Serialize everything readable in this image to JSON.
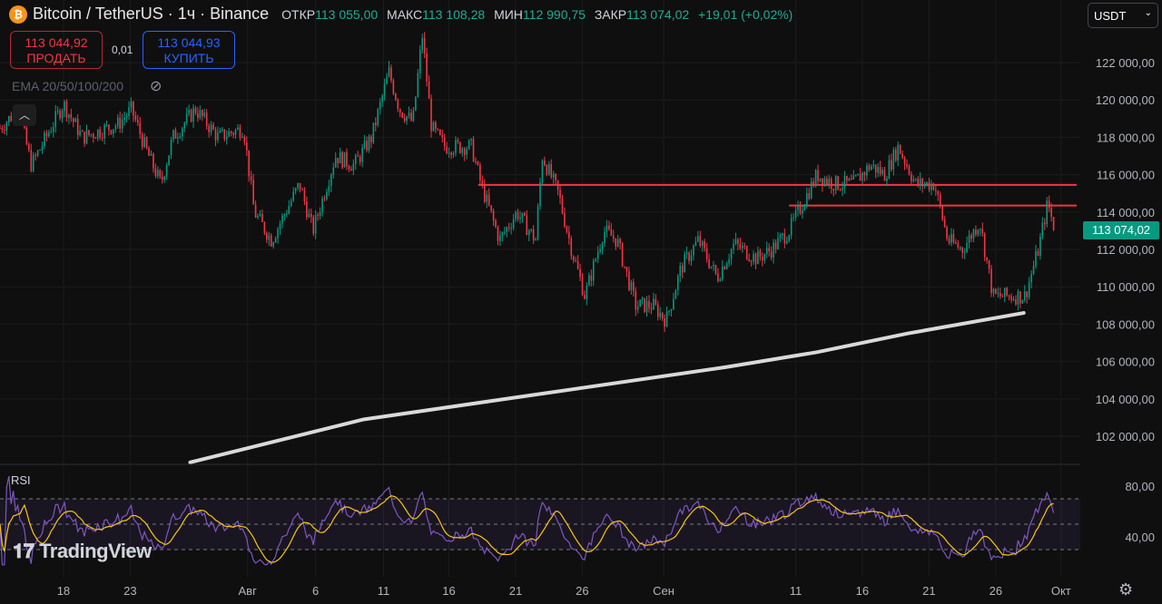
{
  "header": {
    "symbol_title": "Bitcoin / TetherUS · 1ч · Binance",
    "open_label": "ОТКР",
    "open": "113 055,00",
    "high_label": "МАКС",
    "high": "113 108,28",
    "low_label": "МИН",
    "low": "112 990,75",
    "close_label": "ЗАКР",
    "close": "113 074,02",
    "change": "+19,01 (+0,02%)"
  },
  "trade": {
    "sell_price": "113 044,92",
    "sell_label": "ПРОДАТЬ",
    "spread": "0,01",
    "buy_price": "113 044,93",
    "buy_label": "КУПИТЬ"
  },
  "indicator_label": "EMA 20/50/100/200",
  "currency": "USDT",
  "current_price": "113 074,02",
  "rsi_label": "RSI",
  "brand": "TradingView",
  "colors": {
    "up": "#089981",
    "down": "#f23645",
    "level": "#f23645",
    "ema": "#d9d9d9",
    "rsi": "#7e57c2",
    "rsi_ma": "#f5c518"
  },
  "chart_data": {
    "type": "candlestick",
    "title": "Bitcoin / TetherUS · 1ч · Binance",
    "ylim": [
      100500,
      124000
    ],
    "y_ticks": [
      102000,
      104000,
      106000,
      108000,
      110000,
      112000,
      114000,
      116000,
      118000,
      120000,
      122000
    ],
    "y_tick_labels": [
      "102 000,00",
      "104 000,00",
      "106 000,00",
      "108 000,00",
      "110 000,00",
      "112 000,00",
      "114 000,00",
      "116 000,00",
      "118 000,00",
      "120 000,00",
      "122 000,00"
    ],
    "x_unit": "days since Jul 18",
    "xlim": [
      -4.76,
      74.2
    ],
    "x_ticks": [
      {
        "t": 0,
        "label": "18"
      },
      {
        "t": 5,
        "label": "23"
      },
      {
        "t": 13.8,
        "label": "Авг"
      },
      {
        "t": 18.9,
        "label": "6"
      },
      {
        "t": 24,
        "label": "11"
      },
      {
        "t": 28.9,
        "label": "16"
      },
      {
        "t": 33.9,
        "label": "21"
      },
      {
        "t": 38.9,
        "label": "26"
      },
      {
        "t": 45,
        "label": "Сен"
      },
      {
        "t": 54.9,
        "label": "11"
      },
      {
        "t": 59.9,
        "label": "16"
      },
      {
        "t": 64.9,
        "label": "21"
      },
      {
        "t": 69.9,
        "label": "26"
      },
      {
        "t": 74.8,
        "label": "Окт"
      }
    ],
    "price_path": [
      [
        -4.76,
        118500
      ],
      [
        -3.4,
        119500
      ],
      [
        -2.4,
        116500
      ],
      [
        0,
        119800
      ],
      [
        1.4,
        118000
      ],
      [
        4.1,
        118700
      ],
      [
        5.1,
        119500
      ],
      [
        6.1,
        117500
      ],
      [
        7.3,
        115500
      ],
      [
        8.2,
        118000
      ],
      [
        9.9,
        119500
      ],
      [
        11.6,
        118000
      ],
      [
        13.5,
        118500
      ],
      [
        14.3,
        114000
      ],
      [
        15.6,
        112500
      ],
      [
        17.7,
        115500
      ],
      [
        18.7,
        113000
      ],
      [
        20.4,
        117000
      ],
      [
        21.8,
        116500
      ],
      [
        23.1,
        118000
      ],
      [
        24.4,
        121500
      ],
      [
        25.2,
        119500
      ],
      [
        26.2,
        118800
      ],
      [
        26.9,
        123500
      ],
      [
        27.6,
        118500
      ],
      [
        28.6,
        117500
      ],
      [
        30.6,
        117500
      ],
      [
        31.3,
        115500
      ],
      [
        32.7,
        112500
      ],
      [
        34,
        114000
      ],
      [
        35.4,
        112500
      ],
      [
        35.9,
        117000
      ],
      [
        37.1,
        115000
      ],
      [
        38.1,
        112000
      ],
      [
        39.1,
        109500
      ],
      [
        40.5,
        113000
      ],
      [
        41.5,
        112500
      ],
      [
        42.9,
        109000
      ],
      [
        44.2,
        109000
      ],
      [
        45.2,
        108200
      ],
      [
        46.3,
        111000
      ],
      [
        47.6,
        112500
      ],
      [
        49,
        110500
      ],
      [
        50.3,
        112300
      ],
      [
        52,
        111500
      ],
      [
        53.1,
        112000
      ],
      [
        54.4,
        113000
      ],
      [
        55.1,
        114000
      ],
      [
        56.5,
        116000
      ],
      [
        57.8,
        115500
      ],
      [
        59.2,
        115500
      ],
      [
        60.5,
        116500
      ],
      [
        61.6,
        116000
      ],
      [
        62.6,
        117500
      ],
      [
        63.9,
        115500
      ],
      [
        65.3,
        115500
      ],
      [
        66.3,
        112500
      ],
      [
        67.4,
        112000
      ],
      [
        68.7,
        113500
      ],
      [
        69.7,
        109500
      ],
      [
        70.7,
        109500
      ],
      [
        72.1,
        109500
      ],
      [
        73.1,
        112000
      ],
      [
        73.8,
        114500
      ],
      [
        74.3,
        113074
      ]
    ],
    "ema200": [
      [
        9.5,
        100600
      ],
      [
        22.5,
        102900
      ],
      [
        36.1,
        104300
      ],
      [
        49.7,
        105700
      ],
      [
        56.5,
        106500
      ],
      [
        63.3,
        107500
      ],
      [
        72,
        108600
      ]
    ],
    "levels": [
      {
        "price": 115450,
        "from_t": 31.1
      },
      {
        "price": 114350,
        "from_t": 54.4
      }
    ],
    "rsi": {
      "y_ticks": [
        80,
        40
      ],
      "y_tick_labels": [
        "80,00",
        "40,00"
      ],
      "band": [
        30,
        70
      ],
      "mid": 50,
      "ylim": [
        18,
        92
      ]
    }
  }
}
